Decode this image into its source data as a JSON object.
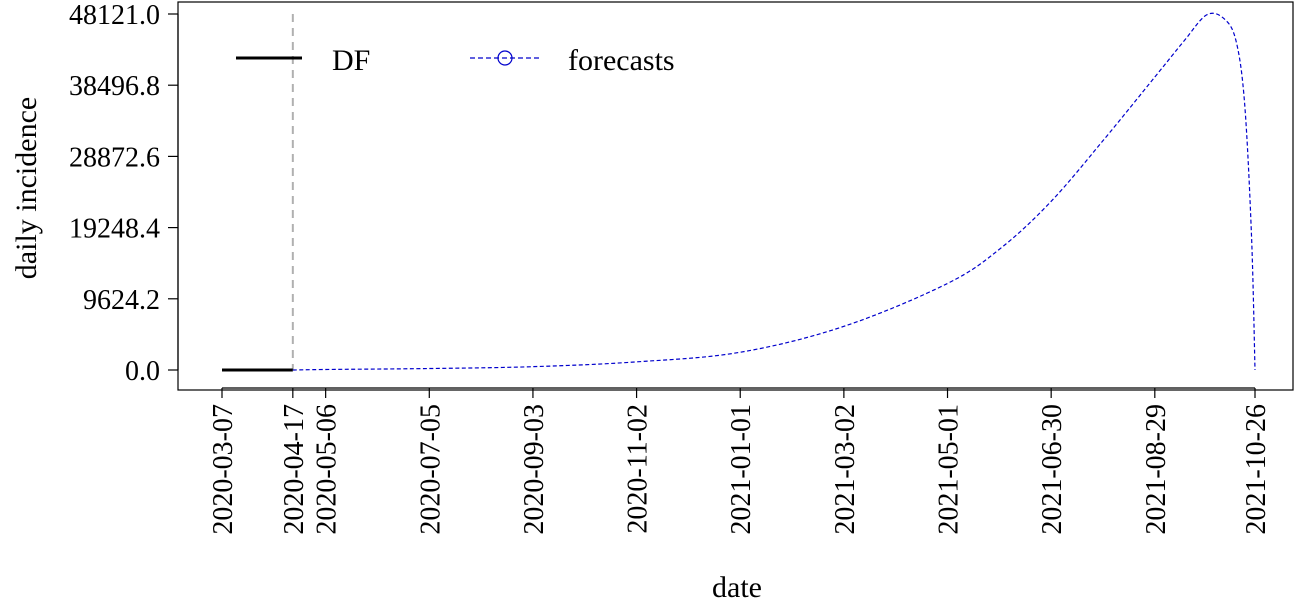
{
  "chart_data": {
    "type": "line",
    "xlabel": "date",
    "ylabel": "daily incidence",
    "ylim": [
      0,
      48121.0
    ],
    "xlim": [
      "2020-03-07",
      "2021-10-26"
    ],
    "grid": false,
    "legend_position": "top-left",
    "y_ticks": [
      "0.0",
      "9624.2",
      "19248.4",
      "28872.6",
      "38496.8",
      "48121.0"
    ],
    "x_ticks": [
      "2020-03-07",
      "2020-04-17",
      "2020-05-06",
      "2020-07-05",
      "2020-09-03",
      "2020-11-02",
      "2021-01-01",
      "2021-03-02",
      "2021-05-01",
      "2021-06-30",
      "2021-08-29",
      "2021-10-26"
    ],
    "cutoff_date": "2020-04-17",
    "series": [
      {
        "name": "DF",
        "color": "#000000",
        "style": "solid",
        "x": [
          "2020-03-07",
          "2020-04-17"
        ],
        "y": [
          0,
          0
        ]
      },
      {
        "name": "forecasts",
        "color": "#0000cc",
        "style": "dashed",
        "marker": "circle",
        "x": [
          "2020-04-17",
          "2020-05-06",
          "2020-07-05",
          "2020-09-03",
          "2020-11-02",
          "2021-01-01",
          "2021-03-02",
          "2021-05-01",
          "2021-06-01",
          "2021-06-30",
          "2021-07-30",
          "2021-08-29",
          "2021-09-15",
          "2021-09-28",
          "2021-10-08",
          "2021-10-15",
          "2021-10-20",
          "2021-10-24",
          "2021-10-26"
        ],
        "y": [
          0,
          70,
          200,
          450,
          1100,
          2400,
          5900,
          11700,
          16500,
          22800,
          31000,
          39600,
          44500,
          48000,
          47500,
          44500,
          36000,
          18000,
          0
        ]
      }
    ]
  }
}
